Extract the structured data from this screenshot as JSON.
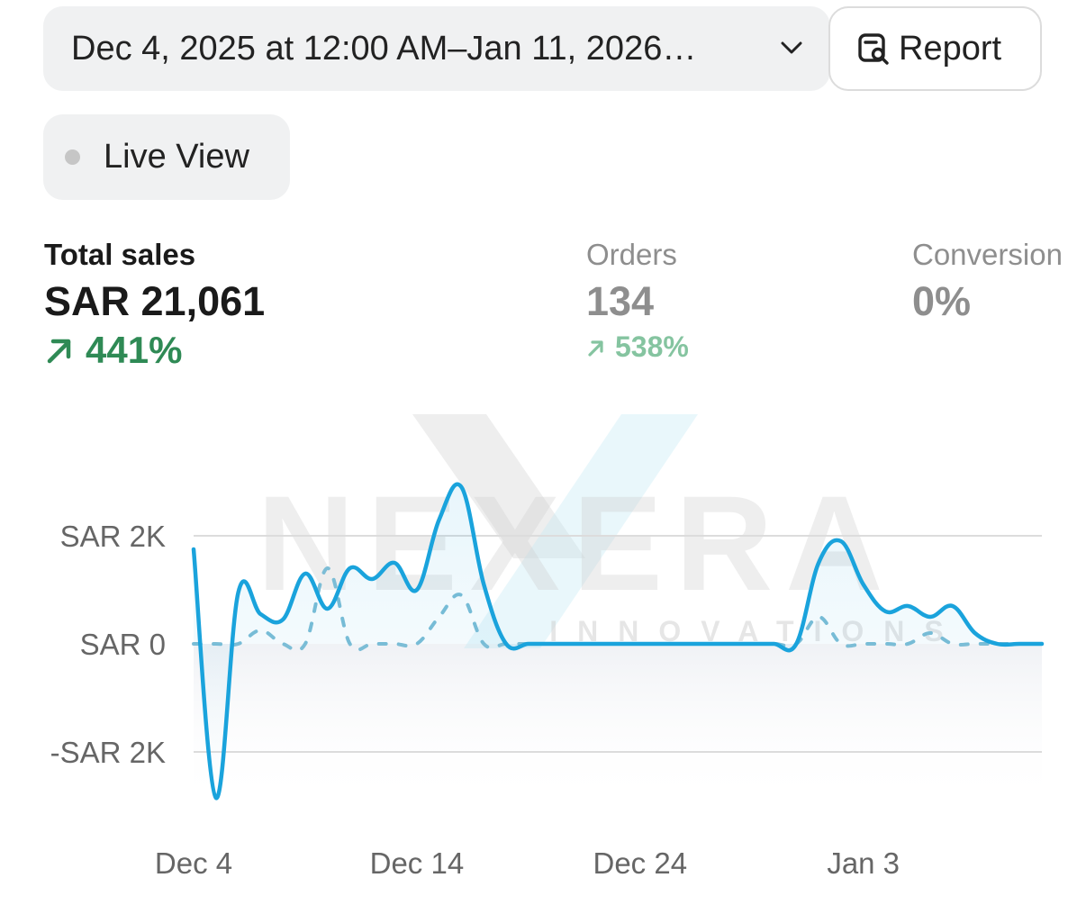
{
  "toolbar": {
    "date_range": "Dec 4, 2025 at 12:00 AM–Jan 11, 2026…",
    "report_label": "Report",
    "live_view_label": "Live View"
  },
  "metrics": {
    "total_sales": {
      "label": "Total sales",
      "value": "SAR 21,061",
      "change": "441%"
    },
    "orders": {
      "label": "Orders",
      "value": "134",
      "change": "538%"
    },
    "conversion": {
      "label": "Conversion",
      "value": "0%"
    }
  },
  "watermark": {
    "brand": "NEXERA",
    "sub": "INNOVATIONS"
  },
  "colors": {
    "current": "#1aa3dc",
    "previous": "#7cbdd6",
    "up": "#2f8a55"
  },
  "chart_data": {
    "type": "line",
    "y_ticks": [
      "SAR 2K",
      "SAR 0",
      "-SAR 2K"
    ],
    "y_tick_values": [
      2000,
      0,
      -2000
    ],
    "x_ticks": [
      "Dec 4",
      "Dec 14",
      "Dec 24",
      "Jan 3"
    ],
    "ylim": [
      -2900,
      3000
    ],
    "grid": true,
    "series": [
      {
        "style": "solid",
        "x": [
          "Dec 4",
          "Dec 5",
          "Dec 6",
          "Dec 7",
          "Dec 8",
          "Dec 9",
          "Dec 10",
          "Dec 11",
          "Dec 12",
          "Dec 13",
          "Dec 14",
          "Dec 15",
          "Dec 16",
          "Dec 17",
          "Dec 18",
          "Dec 19",
          "Dec 20",
          "Dec 21",
          "Dec 22",
          "Dec 23",
          "Dec 24",
          "Dec 25",
          "Dec 26",
          "Dec 27",
          "Dec 28",
          "Dec 29",
          "Dec 30",
          "Dec 31",
          "Jan 1",
          "Jan 2",
          "Jan 3",
          "Jan 4",
          "Jan 5",
          "Jan 6",
          "Jan 7",
          "Jan 8",
          "Jan 9",
          "Jan 10",
          "Jan 11"
        ],
        "values": [
          1750,
          -2850,
          950,
          550,
          450,
          1300,
          650,
          1400,
          1200,
          1500,
          1000,
          2300,
          2900,
          1100,
          0,
          0,
          0,
          0,
          0,
          0,
          0,
          0,
          0,
          0,
          0,
          0,
          0,
          0,
          1500,
          1900,
          1100,
          600,
          700,
          500,
          700,
          200,
          0,
          0,
          0
        ]
      },
      {
        "style": "dashed",
        "x": [
          "Dec 4",
          "Dec 5",
          "Dec 6",
          "Dec 7",
          "Dec 8",
          "Dec 9",
          "Dec 10",
          "Dec 11",
          "Dec 12",
          "Dec 13",
          "Dec 14",
          "Dec 15",
          "Dec 16",
          "Dec 17",
          "Dec 18",
          "Dec 19",
          "Dec 20",
          "Dec 21",
          "Dec 22",
          "Dec 23",
          "Dec 24",
          "Dec 25",
          "Dec 26",
          "Dec 27",
          "Dec 28",
          "Dec 29",
          "Dec 30",
          "Dec 31",
          "Jan 1",
          "Jan 2",
          "Jan 3",
          "Jan 4",
          "Jan 5",
          "Jan 6",
          "Jan 7",
          "Jan 8",
          "Jan 9",
          "Jan 10",
          "Jan 11"
        ],
        "values": [
          0,
          0,
          0,
          250,
          0,
          0,
          1400,
          0,
          0,
          0,
          0,
          500,
          900,
          0,
          0,
          0,
          0,
          0,
          0,
          0,
          0,
          0,
          0,
          0,
          0,
          0,
          0,
          0,
          500,
          0,
          0,
          0,
          0,
          200,
          0,
          0,
          0,
          0,
          0
        ]
      }
    ]
  }
}
